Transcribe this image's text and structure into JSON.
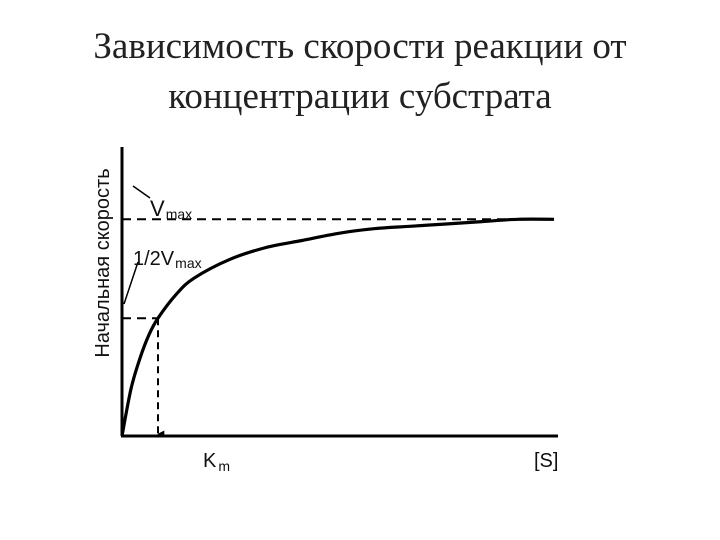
{
  "slide": {
    "title_line1": "Зависимость скорости реакции от",
    "title_line2": "концентрации субстрата"
  },
  "chart_data": {
    "type": "line",
    "title": "Зависимость скорости реакции от концентрации субстрата",
    "ylabel": "Начальная скорость",
    "xlabel": "[S]",
    "grid": false,
    "legend": "none",
    "vmax": 1.0,
    "km": 1.0,
    "xlim": [
      0,
      12
    ],
    "ylim": [
      0,
      1.18
    ],
    "series": [
      {
        "x": [
          0,
          0.25,
          0.5,
          0.75,
          1,
          1.5,
          2,
          3,
          4,
          5,
          6,
          7,
          8,
          9,
          10,
          11,
          12
        ],
        "values": [
          0,
          0.2,
          0.33,
          0.43,
          0.5,
          0.6,
          0.67,
          0.75,
          0.8,
          0.83,
          0.86,
          0.88,
          0.89,
          0.9,
          0.91,
          0.92,
          0.92
        ]
      }
    ],
    "annotations": {
      "vmax_label": {
        "main": "V",
        "sub": "max"
      },
      "half_vmax_label": {
        "main": "1/2V",
        "sub": "max"
      },
      "km_label": {
        "main": "K",
        "sub": "m"
      }
    },
    "colors": {
      "line": "#000000",
      "text": "#111111"
    }
  }
}
